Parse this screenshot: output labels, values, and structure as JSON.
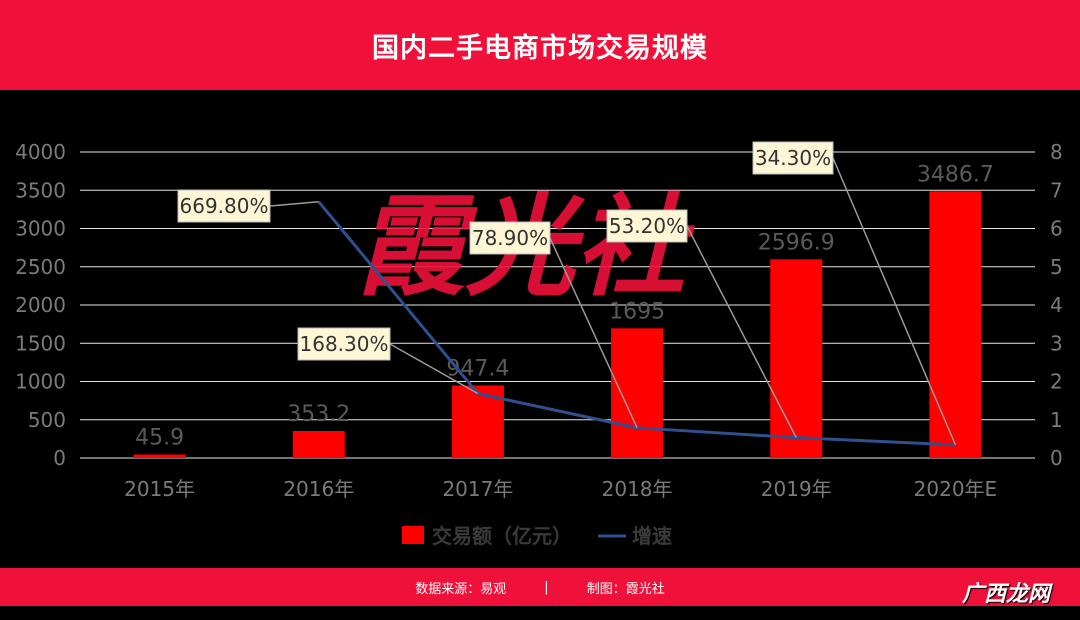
{
  "header": {
    "title": "国内二手电商市场交易规模"
  },
  "footer": {
    "source": "数据来源：易观",
    "separator": "|",
    "credit": "制图：霞光社"
  },
  "corner_logo": "广西龙网",
  "watermark": "霞光社",
  "colors": {
    "brand_red": "#f0113a",
    "bar_red": "#ff0000",
    "line_blue": "#2f4f8f"
  },
  "chart_data": {
    "type": "bar",
    "categories": [
      "2015年",
      "2016年",
      "2017年",
      "2018年",
      "2019年",
      "2020年E"
    ],
    "series": [
      {
        "name": "交易额（亿元）",
        "type": "bar",
        "axis": "left",
        "values": [
          45.9,
          353.2,
          947.4,
          1695,
          2596.9,
          3486.7
        ],
        "labels": [
          "45.9",
          "353.2",
          "947.4",
          "1695",
          "2596.9",
          "3486.7"
        ]
      },
      {
        "name": "增速",
        "type": "line",
        "axis": "right",
        "values": [
          null,
          6.698,
          1.683,
          0.789,
          0.532,
          0.343
        ],
        "labels": [
          "",
          "669.80%",
          "168.30%",
          "78.90%",
          "53.20%",
          "34.30%"
        ]
      }
    ],
    "y_left": {
      "min": 0,
      "max": 4000,
      "ticks": [
        "0",
        "500",
        "1000",
        "1500",
        "2000",
        "2500",
        "3000",
        "3500",
        "4000"
      ]
    },
    "y_right": {
      "min": 0,
      "max": 8,
      "ticks": [
        "0",
        "1",
        "2",
        "3",
        "4",
        "5",
        "6",
        "7",
        "8"
      ]
    },
    "grid": true,
    "legend_position": "bottom"
  }
}
